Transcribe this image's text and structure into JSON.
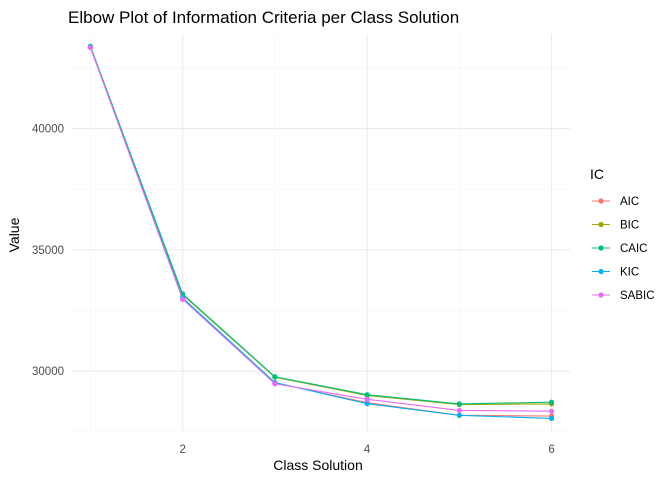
{
  "chart_data": {
    "type": "line",
    "title": "Elbow Plot of Information Criteria per Class Solution",
    "xlabel": "Class Solution",
    "ylabel": "Value",
    "x": [
      1,
      2,
      3,
      4,
      5,
      6
    ],
    "xlim": [
      0.8,
      6.2
    ],
    "ylim": [
      27450,
      43900
    ],
    "x_ticks": [
      2,
      4,
      6
    ],
    "x_tick_labels": [
      "2",
      "4",
      "6"
    ],
    "y_ticks": [
      30000,
      35000,
      40000
    ],
    "y_tick_labels": [
      "30000",
      "35000",
      "40000"
    ],
    "grid": true,
    "legend_title": "IC",
    "legend_position": "right",
    "series": [
      {
        "name": "AIC",
        "color": "#F8766D",
        "values": [
          43350,
          33000,
          29520,
          28700,
          28180,
          28150
        ]
      },
      {
        "name": "BIC",
        "color": "#A3A500",
        "values": [
          43380,
          33150,
          29750,
          29000,
          28620,
          28650
        ]
      },
      {
        "name": "CAIC",
        "color": "#00BF7D",
        "values": [
          43390,
          33180,
          29770,
          29030,
          28650,
          28720
        ]
      },
      {
        "name": "KIC",
        "color": "#00B0F6",
        "values": [
          43360,
          33020,
          29530,
          28660,
          28180,
          28050
        ]
      },
      {
        "name": "SABIC",
        "color": "#E76BF3",
        "values": [
          43340,
          32960,
          29480,
          28840,
          28380,
          28350
        ]
      }
    ]
  }
}
